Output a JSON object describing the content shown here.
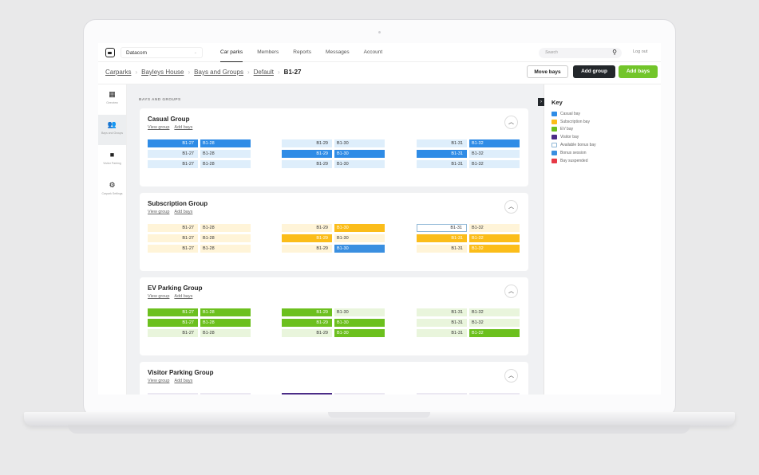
{
  "topbar": {
    "organisation": "Datacom",
    "nav": [
      {
        "label": "Car parks",
        "active": true
      },
      {
        "label": "Members",
        "active": false
      },
      {
        "label": "Reports",
        "active": false
      },
      {
        "label": "Messages",
        "active": false
      },
      {
        "label": "Account",
        "active": false
      }
    ],
    "search_placeholder": "Search",
    "logout": "Log out"
  },
  "breadcrumb": {
    "links": [
      "Carparks",
      "Bayleys House",
      "Bays and Groups",
      "Default"
    ],
    "current": "B1-27",
    "separator": "›"
  },
  "actions": {
    "move_bays": "Move bays",
    "add_group": "Add group",
    "add_bays": "Add bays"
  },
  "sidebar": [
    {
      "label": "Overview",
      "icon": "dashboard-icon",
      "active": false
    },
    {
      "label": "Bays and Groups",
      "icon": "people-icon",
      "active": true
    },
    {
      "label": "Visitor Parking",
      "icon": "folder-icon",
      "active": false
    },
    {
      "label": "Carpark Settings",
      "icon": "settings-gear-icon",
      "active": false
    }
  ],
  "main": {
    "section_title": "BAYS AND GROUPS",
    "view_group": "View group",
    "add_bays": "Add bays",
    "groups": [
      {
        "name": "Casual Group",
        "color": "#2f8ce6",
        "rows": [
          [
            [
              "B1-27",
              "B1-28"
            ],
            [
              "B1-29",
              "B1-30"
            ],
            [
              "B1-31",
              "B1-32"
            ]
          ],
          [
            [
              "B1-27",
              "B1-28"
            ],
            [
              "B1-29",
              "B1-30"
            ],
            [
              "B1-31",
              "B1-32"
            ]
          ],
          [
            [
              "B1-27",
              "B1-28"
            ],
            [
              "B1-29",
              "B1-30"
            ],
            [
              "B1-31",
              "B1-32"
            ]
          ]
        ]
      },
      {
        "name": "Subscription Group",
        "color": "#fbbd1a",
        "rows": [
          [
            [
              "B1-27",
              "B1-28"
            ],
            [
              "B1-29",
              "B1-30"
            ],
            [
              "B1-31",
              "B1-32"
            ]
          ],
          [
            [
              "B1-27",
              "B1-28"
            ],
            [
              "B1-29",
              "B1-30"
            ],
            [
              "B1-31",
              "B1-32"
            ]
          ],
          [
            [
              "B1-27",
              "B1-28"
            ],
            [
              "B1-29",
              "B1-30"
            ],
            [
              "B1-31",
              "B1-32"
            ]
          ]
        ]
      },
      {
        "name": "EV Parking Group",
        "color": "#6cc01e",
        "rows": [
          [
            [
              "B1-27",
              "B1-28"
            ],
            [
              "B1-29",
              "B1-30"
            ],
            [
              "B1-31",
              "B1-32"
            ]
          ],
          [
            [
              "B1-27",
              "B1-28"
            ],
            [
              "B1-29",
              "B1-30"
            ],
            [
              "B1-31",
              "B1-32"
            ]
          ],
          [
            [
              "B1-27",
              "B1-28"
            ],
            [
              "B1-29",
              "B1-30"
            ],
            [
              "B1-31",
              "B1-32"
            ]
          ]
        ]
      },
      {
        "name": "Visitor Parking Group",
        "color": "#4b2c87",
        "rows": []
      }
    ]
  },
  "key": {
    "title": "Key",
    "items": [
      {
        "label": "Casual bay",
        "color": "#2f8ce6"
      },
      {
        "label": "Subscription bay",
        "color": "#fbbd1a"
      },
      {
        "label": "EV bay",
        "color": "#6cc01e"
      },
      {
        "label": "Visitor bay",
        "color": "#4b2c87"
      },
      {
        "label": "Available bonus bay",
        "color": "#ffffff"
      },
      {
        "label": "Bonus session",
        "color": "#3a8fe0"
      },
      {
        "label": "Bay suspended",
        "color": "#e63946"
      }
    ]
  }
}
